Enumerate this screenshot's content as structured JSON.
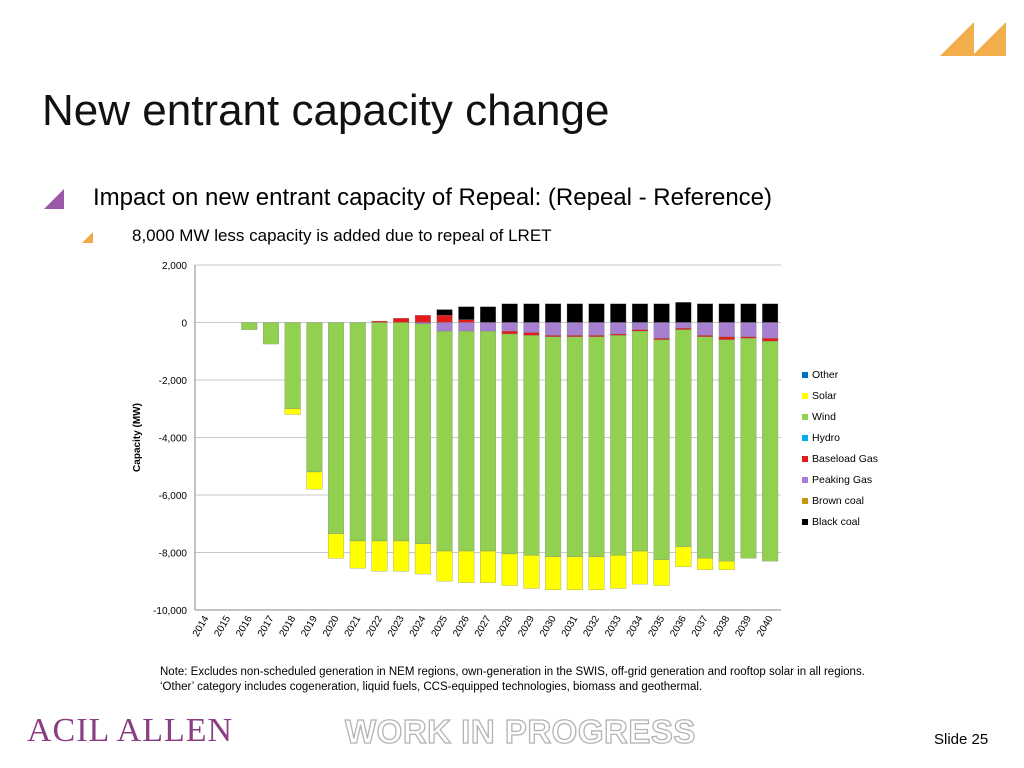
{
  "slide": {
    "title": "New entrant capacity change",
    "bullet": "Impact on new entrant capacity of Repeal: (Repeal - Reference)",
    "sub_bullet": "8,000 MW less capacity is added due to repeal of LRET",
    "note": "Note: Excludes non-scheduled generation in NEM regions, own-generation in the SWIS, off-grid generation and rooftop solar in all regions. ‘Other’ category includes cogeneration, liquid fuels, CCS-equipped technologies, biomass and geothermal.",
    "brand": "ACIL ALLEN",
    "watermark": "WORK IN PROGRESS",
    "slide_number": "Slide 25"
  },
  "colors": {
    "accent_purple": "#9b59a8",
    "accent_orange": "#f0a848"
  },
  "chart_data": {
    "type": "bar",
    "stacked": true,
    "title": "",
    "xlabel": "",
    "ylabel": "Capacity (MW)",
    "ylim": [
      -10000,
      2000
    ],
    "yticks": [
      2000,
      0,
      -2000,
      -4000,
      -6000,
      -8000,
      -10000
    ],
    "ytick_labels": [
      "2,000",
      "0",
      "-2,000",
      "-4,000",
      "-6,000",
      "-8,000",
      "-10,000"
    ],
    "grid": true,
    "legend_position": "right",
    "categories": [
      "2014",
      "2015",
      "2016",
      "2017",
      "2018",
      "2019",
      "2020",
      "2021",
      "2022",
      "2023",
      "2024",
      "2025",
      "2026",
      "2027",
      "2028",
      "2029",
      "2030",
      "2031",
      "2032",
      "2033",
      "2034",
      "2035",
      "2036",
      "2037",
      "2038",
      "2039",
      "2040"
    ],
    "series": [
      {
        "name": "Other",
        "color": "#0070c0",
        "values": [
          0,
          0,
          0,
          0,
          0,
          0,
          0,
          0,
          0,
          0,
          0,
          0,
          0,
          0,
          0,
          0,
          0,
          0,
          0,
          0,
          0,
          0,
          0,
          0,
          0,
          0,
          0
        ]
      },
      {
        "name": "Solar",
        "color": "#ffff00",
        "values": [
          0,
          0,
          0,
          0,
          -200,
          -600,
          -850,
          -950,
          -1050,
          -1050,
          -1050,
          -1050,
          -1100,
          -1100,
          -1100,
          -1150,
          -1150,
          -1150,
          -1150,
          -1150,
          -1150,
          -900,
          -700,
          -400,
          -300,
          0,
          0
        ]
      },
      {
        "name": "Wind",
        "color": "#92d050",
        "values": [
          0,
          0,
          -250,
          -750,
          -3000,
          -5200,
          -7350,
          -7600,
          -7600,
          -7600,
          -7650,
          -7650,
          -7650,
          -7650,
          -7650,
          -7650,
          -7650,
          -7650,
          -7650,
          -7650,
          -7650,
          -7650,
          -7550,
          -7700,
          -7700,
          -7650,
          -7650
        ]
      },
      {
        "name": "Hydro",
        "color": "#00b0f0",
        "values": [
          0,
          0,
          0,
          0,
          0,
          0,
          0,
          0,
          0,
          0,
          0,
          0,
          0,
          0,
          0,
          0,
          0,
          0,
          0,
          0,
          0,
          0,
          0,
          0,
          0,
          0,
          0
        ]
      },
      {
        "name": "Baseload Gas",
        "color": "#e31b1b",
        "positive_values": [
          0,
          0,
          0,
          0,
          0,
          0,
          0,
          0,
          50,
          150,
          250,
          250,
          100,
          0,
          0,
          0,
          0,
          0,
          0,
          0,
          0,
          0,
          0,
          0,
          0,
          0,
          0
        ],
        "negative_values": [
          0,
          0,
          0,
          0,
          0,
          0,
          0,
          0,
          0,
          0,
          0,
          0,
          0,
          0,
          -100,
          -100,
          -50,
          -50,
          -50,
          -50,
          -50,
          -50,
          -50,
          -50,
          -100,
          -50,
          -100
        ]
      },
      {
        "name": "Peaking Gas",
        "color": "#a77fd0",
        "values": [
          0,
          0,
          0,
          0,
          0,
          0,
          0,
          0,
          0,
          0,
          -50,
          -300,
          -300,
          -300,
          -300,
          -350,
          -450,
          -450,
          -450,
          -400,
          -250,
          -550,
          -200,
          -450,
          -500,
          -500,
          -550
        ]
      },
      {
        "name": "Brown coal",
        "color": "#c8960c",
        "values": [
          0,
          0,
          0,
          0,
          0,
          0,
          0,
          0,
          0,
          0,
          0,
          0,
          0,
          0,
          0,
          0,
          0,
          0,
          0,
          0,
          0,
          0,
          0,
          0,
          0,
          0,
          0
        ]
      },
      {
        "name": "Black coal",
        "color": "#000000",
        "values": [
          0,
          0,
          0,
          0,
          0,
          0,
          0,
          0,
          0,
          0,
          0,
          200,
          450,
          550,
          650,
          650,
          650,
          650,
          650,
          650,
          650,
          650,
          700,
          650,
          650,
          650,
          650
        ]
      }
    ]
  }
}
